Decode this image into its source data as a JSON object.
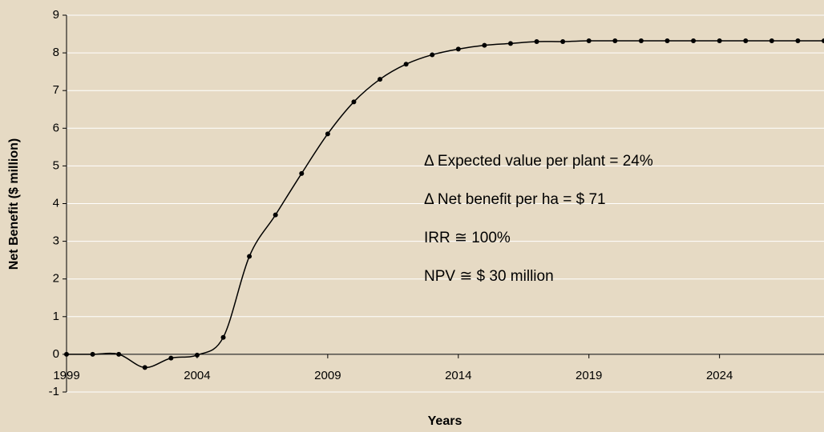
{
  "chart_data": {
    "type": "line",
    "x": [
      1999,
      2000,
      2001,
      2002,
      2003,
      2004,
      2005,
      2006,
      2007,
      2008,
      2009,
      2010,
      2011,
      2012,
      2013,
      2014,
      2015,
      2016,
      2017,
      2018,
      2019,
      2020,
      2021,
      2022,
      2023,
      2024,
      2025,
      2026,
      2027,
      2028
    ],
    "series": [
      {
        "name": "Net Benefit",
        "color": "#000000",
        "values": [
          0,
          0,
          0,
          -0.35,
          -0.1,
          -0.02,
          0.45,
          2.6,
          3.7,
          4.8,
          5.85,
          6.7,
          7.3,
          7.7,
          7.95,
          8.1,
          8.2,
          8.25,
          8.3,
          8.3,
          8.32,
          8.32,
          8.32,
          8.32,
          8.32,
          8.32,
          8.32,
          8.32,
          8.32,
          8.32
        ]
      }
    ],
    "xlim": [
      1999,
      2028
    ],
    "xticks": [
      1999,
      2004,
      2009,
      2014,
      2019,
      2024
    ],
    "ylim": [
      -1,
      9
    ],
    "yticks": [
      -1,
      0,
      1,
      2,
      3,
      4,
      5,
      6,
      7,
      8,
      9
    ],
    "grid": true,
    "grid_color": "#ffffff",
    "background": "#e6dac4",
    "x_label": "Years",
    "y_label": "Net Benefit ($ million)",
    "annotations": [
      "Δ Expected  value per plant = 24%",
      "Δ Net benefit per ha = $ 71",
      "IRR ≅ 100%",
      "NPV ≅ $ 30 million"
    ]
  }
}
